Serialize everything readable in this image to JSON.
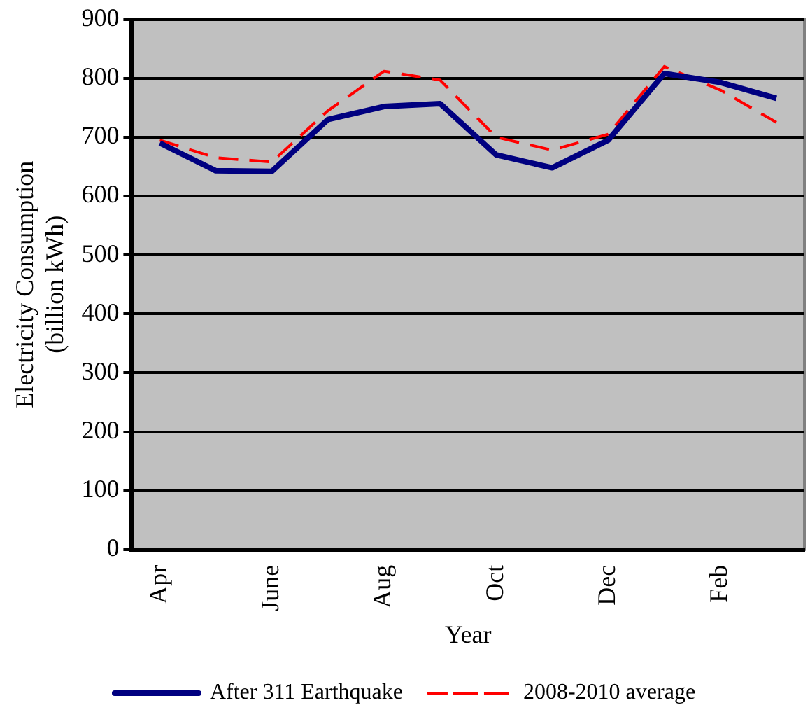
{
  "chart_data": {
    "type": "line",
    "xlabel": "Year",
    "ylabel": "Electricity Consumption (billion kWh)",
    "categories": [
      "Apr",
      null,
      "June",
      null,
      "Aug",
      null,
      "Oct",
      null,
      "Dec",
      null,
      "Feb",
      null
    ],
    "series": [
      {
        "name": "After 311 Earthquake",
        "color": "#000080",
        "line_style": "solid",
        "values": [
          690,
          643,
          642,
          730,
          752,
          757,
          670,
          648,
          695,
          808,
          793,
          766
        ]
      },
      {
        "name": "2008-2010 average",
        "color": "#ff0000",
        "line_style": "dashed",
        "values": [
          695,
          665,
          658,
          745,
          812,
          797,
          700,
          678,
          705,
          820,
          780,
          725
        ]
      }
    ],
    "ylim": [
      0,
      900
    ],
    "yticks": [
      0,
      100,
      200,
      300,
      400,
      500,
      600,
      700,
      800,
      900
    ],
    "grid": "y",
    "legend": "bottom",
    "marker": "none"
  }
}
